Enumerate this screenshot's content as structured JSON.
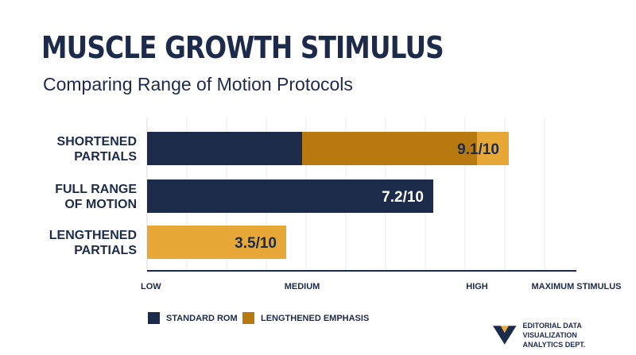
{
  "title": "MUSCLE GROWTH STIMULUS",
  "subtitle": "Comparing Range of Motion Protocols",
  "chart_data": {
    "type": "bar",
    "orientation": "horizontal",
    "stacked": true,
    "categories": [
      "SHORTENED\nPARTIALS",
      "FULL RANGE\nOF MOTION",
      "LENGTHENED\nPARTIALS"
    ],
    "series": [
      {
        "name": "STANDARD ROM",
        "color": "#1c2b4a",
        "values": [
          3.9,
          7.2,
          0
        ]
      },
      {
        "name": "LENGTHENED EMPHASIS",
        "color": "#b87a10",
        "values": [
          4.4,
          0,
          0
        ]
      }
    ],
    "overlay": {
      "name": "LENGTHENED EMPHASIS",
      "color": "#e8a838",
      "segments": [
        [
          8.3,
          9.1
        ],
        null,
        [
          0,
          3.5
        ]
      ]
    },
    "bar_labels": [
      "9.1/10",
      "7.2/10",
      "3.5/10"
    ],
    "xlim": [
      0,
      10.8
    ],
    "x_ticks": [
      {
        "value": 0,
        "label": "LOW"
      },
      {
        "value": 3.9,
        "label": "MEDIUM"
      },
      {
        "value": 8.3,
        "label": "HIGH"
      },
      {
        "value": 10.8,
        "label": "MAXIMUM STIMULUS"
      }
    ],
    "grid": true,
    "legend": "bottom-left"
  },
  "legend": {
    "items": [
      {
        "label": "STANDARD ROM",
        "color": "#1c2b4a"
      },
      {
        "label": "LENGTHENED EMPHASIS",
        "color": "#b87a10"
      }
    ]
  },
  "brand": {
    "line1": "EDITORIAL DATA VISUALIZATION",
    "line2": "ANALYTICS DEPT.",
    "icon": "brand-logo-icon"
  }
}
